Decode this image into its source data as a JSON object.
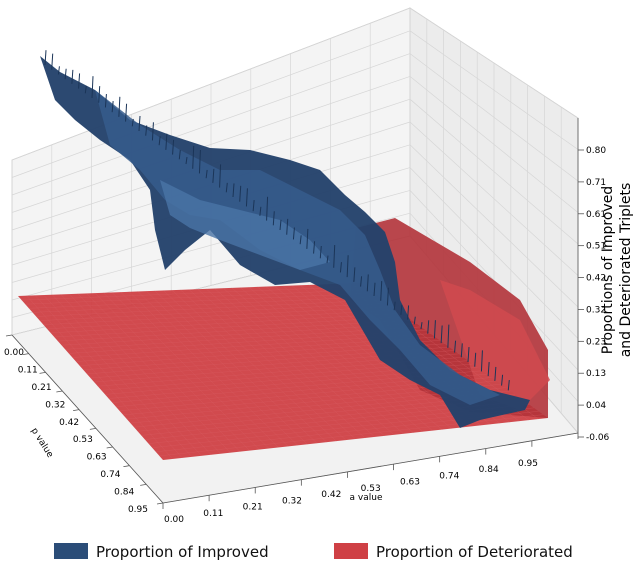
{
  "chart_data": {
    "type": "surface3d",
    "title": "",
    "xlabel": "a value",
    "ylabel": "p value",
    "zlabel_line1": "Proportions of Improved",
    "zlabel_line2": "and Deteriorated Triplets",
    "a_ticks": [
      "0.00",
      "0.11",
      "0.21",
      "0.32",
      "0.42",
      "0.53",
      "0.63",
      "0.74",
      "0.84",
      "0.95"
    ],
    "p_ticks": [
      "0.00",
      "0.11",
      "0.21",
      "0.32",
      "0.42",
      "0.53",
      "0.63",
      "0.74",
      "0.84",
      "0.95"
    ],
    "z_ticks": [
      "0.80",
      "0.71",
      "0.61",
      "0.51",
      "0.42",
      "0.32",
      "0.23",
      "0.13",
      "0.04",
      "-0.06"
    ],
    "zlim": [
      -0.06,
      0.8
    ],
    "grid": true,
    "legend_position": "bottom",
    "series": [
      {
        "name": "Proportion of Improved",
        "color": "#2b4d78",
        "description_points": [
          {
            "p": 0.0,
            "a": 0.0,
            "z": 0.78
          },
          {
            "p": 0.0,
            "a": 0.95,
            "z": 0.35
          },
          {
            "p": 0.95,
            "a": 0.0,
            "z": 0.4
          },
          {
            "p": 0.95,
            "a": 0.95,
            "z": 0.0
          }
        ]
      },
      {
        "name": "Proportion of Deteriorated",
        "color": "#cf4045",
        "description_points": [
          {
            "p": 0.0,
            "a": 0.0,
            "z": 0.0
          },
          {
            "p": 0.95,
            "a": 0.0,
            "z": 0.0
          },
          {
            "p": 0.0,
            "a": 0.95,
            "z": 0.3
          },
          {
            "p": 0.95,
            "a": 0.95,
            "z": 0.05
          }
        ]
      }
    ]
  },
  "legend": {
    "improved_label": "Proportion of Improved",
    "deteriorated_label": "Proportion of Deteriorated",
    "improved_color": "#2b4d78",
    "deteriorated_color": "#cf4045"
  }
}
